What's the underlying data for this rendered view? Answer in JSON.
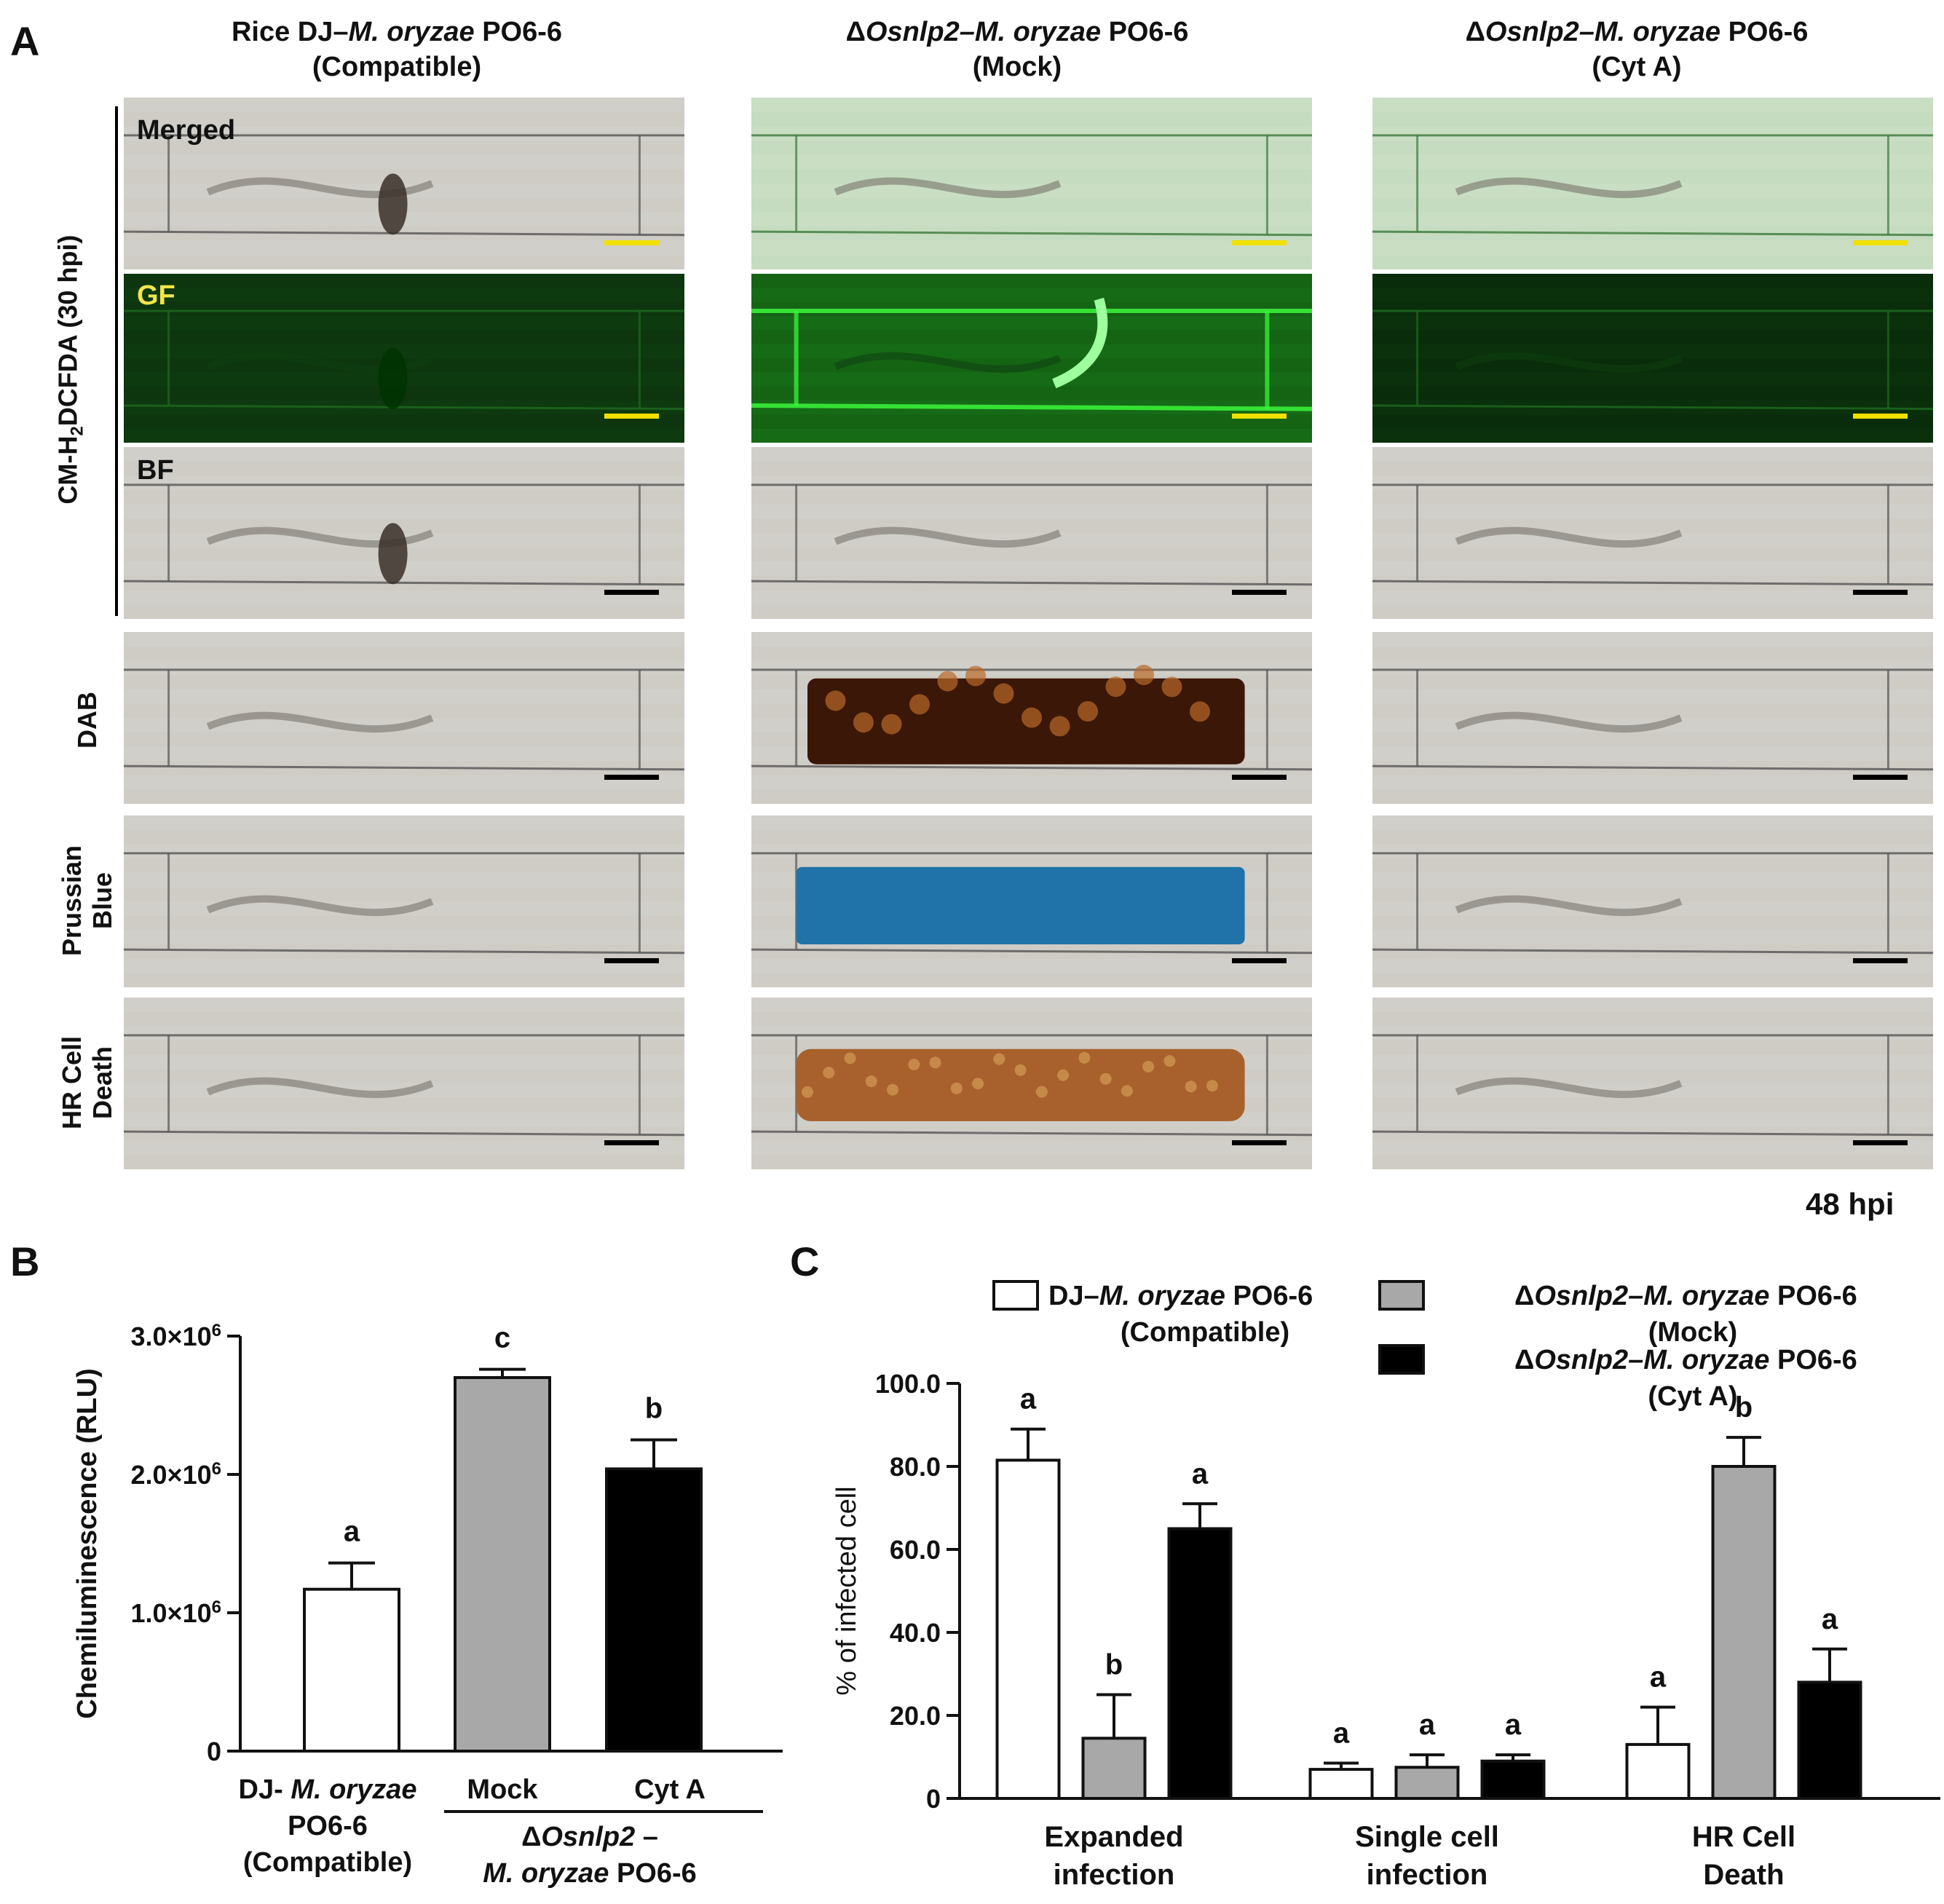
{
  "panel_a": {
    "label": "A",
    "columns": [
      {
        "title_pre": "Rice DJ–",
        "title_ital": "M. oryzae",
        "title_post": " PO6-6",
        "subtitle": "(Compatible)"
      },
      {
        "title_pre": "Δ",
        "title_ital": "Osnlp2–M. oryzae",
        "title_post": " PO6-6",
        "subtitle": "(Mock)"
      },
      {
        "title_pre": "Δ",
        "title_ital": "Osnlp2–M. oryzae",
        "title_post": " PO6-6",
        "subtitle": "(Cyt  A)"
      }
    ],
    "group_label_pre": "CM-H",
    "group_label_sub": "2",
    "group_label_post": "DCFDA (30 hpi)",
    "tile_labels": {
      "merged": "Merged",
      "gf": "GF",
      "bf": "BF"
    },
    "row_labels": {
      "dab": "DAB",
      "prussian_1": "Prussian",
      "prussian_2": "Blue",
      "hr_1": "HR Cell",
      "hr_2": "Death"
    },
    "footer": "48 hpi"
  },
  "panel_b": {
    "label": "B",
    "chart_data": {
      "type": "bar",
      "ylabel": "Chemiluminescence (RLU)",
      "ylim": [
        0,
        3000000
      ],
      "yticks": [
        {
          "value": 0,
          "mantissa": "0",
          "exp": ""
        },
        {
          "value": 1000000,
          "mantissa": "1.0×10",
          "exp": "6"
        },
        {
          "value": 2000000,
          "mantissa": "2.0×10",
          "exp": "6"
        },
        {
          "value": 3000000,
          "mantissa": "3.0×10",
          "exp": "6"
        }
      ],
      "categories": [
        "DJ- M. oryzae PO6-6 (Compatible)",
        "Mock",
        "Cyt A"
      ],
      "cat_labels": {
        "c1_line1_pre": "DJ- ",
        "c1_line1_ital": "M. oryzae",
        "c1_line2": "PO6-6",
        "c1_line3": "(Compatible)",
        "c2": "Mock",
        "c3": "Cyt A",
        "group_line1_pre": "Δ",
        "group_line1_ital": "Osnlp2",
        "group_line1_post": " –",
        "group_line2_ital": "M. oryzae",
        "group_line2_post": " PO6-6"
      },
      "values": [
        1170000,
        2700000,
        2040000
      ],
      "errors": [
        190000,
        60000,
        210000
      ],
      "letters": [
        "a",
        "c",
        "b"
      ],
      "colors": [
        "#ffffff",
        "#a8a8a8",
        "#000000"
      ]
    }
  },
  "panel_c": {
    "label": "C",
    "chart_data": {
      "type": "bar",
      "ylabel": "% of infected cell",
      "ylim": [
        0,
        100
      ],
      "yticks": [
        "0",
        "20.0",
        "40.0",
        "60.0",
        "80.0",
        "100.0"
      ],
      "categories": [
        {
          "line1": "Expanded",
          "line2": "infection"
        },
        {
          "line1": "Single cell",
          "line2": "infection"
        },
        {
          "line1": "HR Cell",
          "line2": "Death"
        }
      ],
      "series": [
        {
          "name_pre": "DJ–",
          "name_ital": "M. oryzae",
          "name_post": " PO6-6",
          "name_sub": "(Compatible)",
          "color": "#ffffff",
          "values": [
            81.5,
            7.0,
            13.0
          ],
          "errors": [
            7.5,
            1.5,
            9.0
          ],
          "letters": [
            "a",
            "a",
            "a"
          ]
        },
        {
          "name_pre": "Δ",
          "name_ital": "Osnlp2–M. oryzae",
          "name_post": " PO6-6",
          "name_sub": "(Mock)",
          "color": "#a8a8a8",
          "values": [
            14.5,
            7.5,
            80.0
          ],
          "errors": [
            10.5,
            3.0,
            7.0
          ],
          "letters": [
            "b",
            "a",
            "b"
          ]
        },
        {
          "name_pre": "Δ",
          "name_ital": "Osnlp2–M. oryzae",
          "name_post": " PO6-6",
          "name_sub": "(Cyt A)",
          "color": "#000000",
          "values": [
            65.0,
            9.0,
            28.0
          ],
          "errors": [
            6.0,
            1.5,
            8.0
          ],
          "letters": [
            "a",
            "a",
            "a"
          ]
        }
      ]
    }
  }
}
